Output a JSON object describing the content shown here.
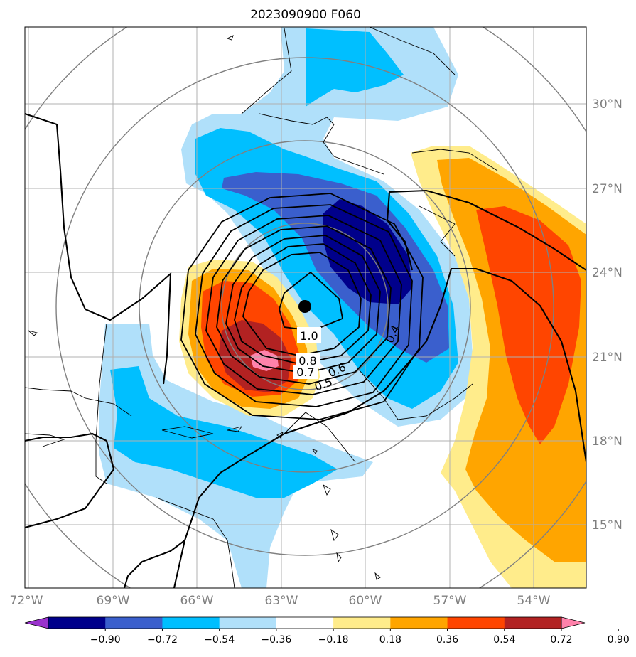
{
  "title": "2023090900 F060",
  "lon_ticks": [
    "72°W",
    "69°W",
    "66°W",
    "63°W",
    "60°W",
    "57°W",
    "54°W"
  ],
  "lat_ticks": [
    "30°N",
    "27°N",
    "24°N",
    "21°N",
    "18°N",
    "15°N"
  ],
  "colorbar": {
    "ticks": [
      "−0.90",
      "−0.72",
      "−0.54",
      "−0.36",
      "−0.18",
      "0.18",
      "0.36",
      "0.54",
      "0.72",
      "0.90"
    ],
    "colors": [
      "#9932cc",
      "#00008b",
      "#3a5fcd",
      "#00bfff",
      "#b0e0fa",
      "#ffffff",
      "#ffec8b",
      "#ffa500",
      "#ff4500",
      "#b22222",
      "#ff82ab"
    ]
  },
  "contour_labels": [
    "1.0",
    "0.8",
    "0.7",
    "0.6",
    "0.5",
    "0.4"
  ],
  "storm_center": {
    "lon": -62.1,
    "lat": 22.8
  }
}
